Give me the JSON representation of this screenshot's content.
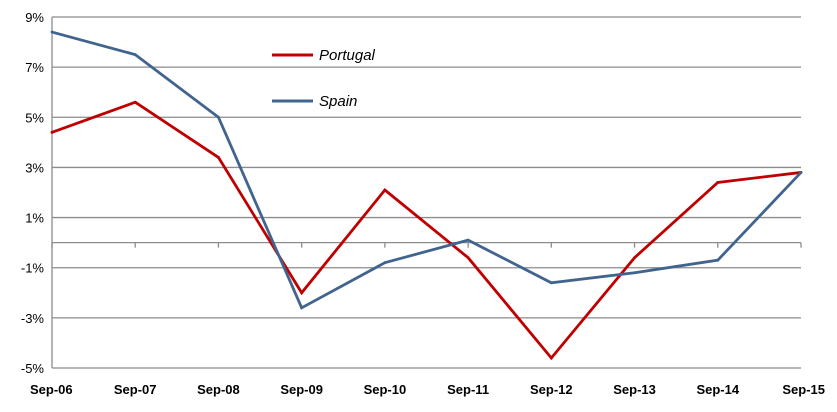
{
  "chart_data": {
    "type": "line",
    "title": "",
    "xlabel": "",
    "ylabel": "",
    "categories": [
      "Sep-06",
      "Sep-07",
      "Sep-08",
      "Sep-09",
      "Sep-10",
      "Sep-11",
      "Sep-12",
      "Sep-13",
      "Sep-14",
      "Sep-15"
    ],
    "ylim": [
      -5,
      9
    ],
    "yticks": [
      9,
      7,
      5,
      3,
      1,
      -1,
      -3,
      -5
    ],
    "ytick_labels": [
      "9%",
      "7%",
      "5%",
      "3%",
      "1%",
      "-1%",
      "-3%",
      "-5%"
    ],
    "grid": true,
    "legend_position": "top-center",
    "series": [
      {
        "name": "Portugal",
        "color": "#c00000",
        "values": [
          4.4,
          5.6,
          3.4,
          -2.0,
          2.1,
          -0.6,
          -4.6,
          -0.6,
          2.4,
          2.8
        ]
      },
      {
        "name": "Spain",
        "color": "#41648f",
        "values": [
          8.4,
          7.5,
          5.0,
          -2.6,
          -0.8,
          0.1,
          -1.6,
          -1.2,
          -0.7,
          2.8
        ]
      }
    ]
  }
}
